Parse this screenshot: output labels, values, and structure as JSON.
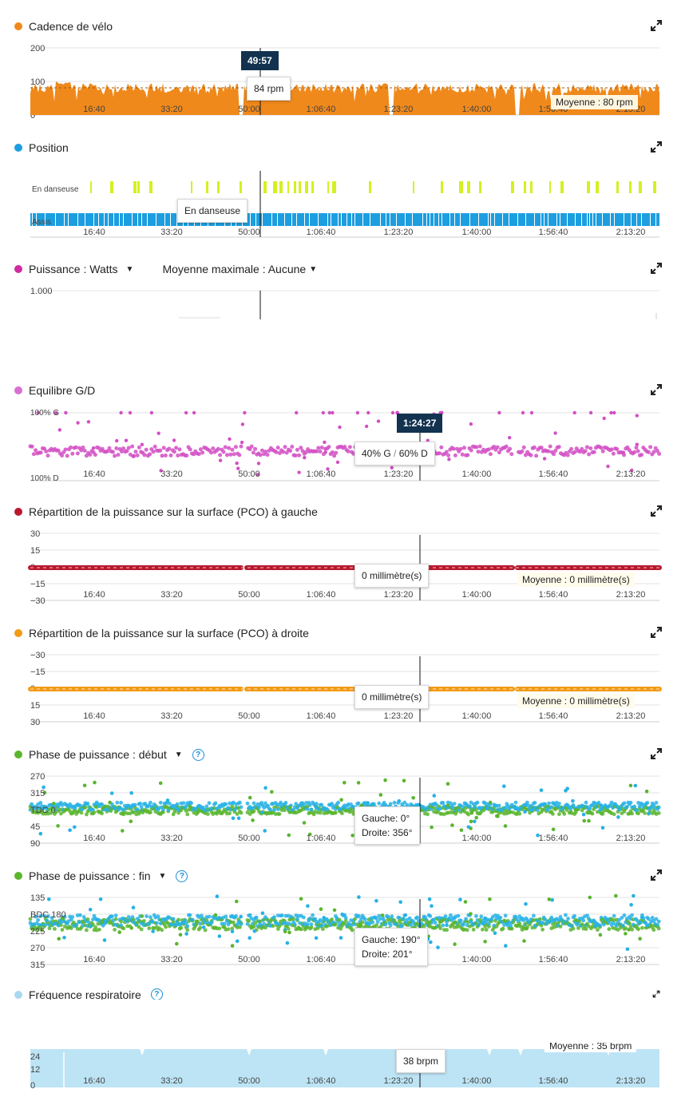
{
  "time_ticks": [
    "16:40",
    "33:20",
    "50:00",
    "1:06:40",
    "1:23:20",
    "1:40:00",
    "1:56:40",
    "2:13:20"
  ],
  "colors": {
    "cadence": "#f0891b",
    "position_stand": "#d5f020",
    "position_seat": "#1c9ee0",
    "power": "#d22aa0",
    "balance": "#d24fc4",
    "pco_left": "#b8182e",
    "pco_right": "#f29b15",
    "phase_left": "#5bb52e",
    "phase_right": "#27b1e6",
    "resp": "#bde4f5",
    "badge": "#12324f"
  },
  "panels": {
    "cadence": {
      "title": "Cadence de vélo",
      "tooltip": "84 rpm",
      "time_badge": "49:57",
      "avg": "Moyenne : 80 rpm"
    },
    "position": {
      "title": "Position",
      "tooltip": "En danseuse"
    },
    "power": {
      "title": "Puissance : Watts",
      "mm": "Moyenne maximale : Aucune"
    },
    "balance": {
      "title": "Equilibre G/D",
      "time_badge": "1:24:27",
      "tooltip_left": "40% G",
      "tooltip_sep": "/",
      "tooltip_right": "60% D"
    },
    "pco_left": {
      "title": "Répartition de la puissance sur la surface (PCO) à gauche",
      "tooltip": "0 millimètre(s)",
      "avg": "Moyenne : 0 millimètre(s)"
    },
    "pco_right": {
      "title": "Répartition de la puissance sur la surface (PCO) à droite",
      "tooltip": "0 millimètre(s)",
      "avg": "Moyenne : 0 millimètre(s)"
    },
    "phase_start": {
      "title": "Phase de puissance : début",
      "help": "?",
      "tooltip_line1": "Gauche: 0°",
      "tooltip_line2": "Droite: 356°"
    },
    "phase_end": {
      "title": "Phase de puissance : fin",
      "help": "?",
      "tooltip_line1": "Gauche: 190°",
      "tooltip_line2": "Droite: 201°"
    },
    "resp": {
      "title": "Fréquence respiratoire",
      "help": "?",
      "tooltip": "38 brpm",
      "avg": "Moyenne : 35 brpm"
    }
  },
  "chart_data": [
    {
      "type": "area",
      "title": "Cadence de vélo",
      "x_unit": "time",
      "x_range": [
        0,
        8500
      ],
      "ylim": [
        0,
        200
      ],
      "y_ticks": [
        "200",
        "100",
        "0"
      ],
      "mean": 80,
      "cursor_x": 2997,
      "series": [
        {
          "name": "Cadence de vélo",
          "typical_value": 84,
          "values_hint": "oscillating 70–100 rpm"
        }
      ]
    },
    {
      "type": "scatter",
      "title": "Position",
      "categories": [
        "En danseuse",
        "Assis"
      ],
      "cursor_x": 2997,
      "series": [
        {
          "name": "En danseuse",
          "value": "intermittent"
        },
        {
          "name": "Assis",
          "value": "continuous"
        }
      ]
    },
    {
      "type": "line",
      "title": "Puissance : Watts",
      "y_ticks": [
        "1.000"
      ],
      "cursor_x": 2997
    },
    {
      "type": "scatter",
      "title": "Equilibre G/D",
      "ylim": [
        "100% D",
        "100% G"
      ],
      "y_ticks": [
        "100% G",
        "100% D"
      ],
      "cursor_x": 5067,
      "series": [
        {
          "name": "Equilibre G/D",
          "typical_value": "40% G / 60% D"
        }
      ]
    },
    {
      "type": "line",
      "title": "Répartition de la puissance sur la surface (PCO) à gauche",
      "ylim": [
        -30,
        30
      ],
      "y_ticks": [
        "30",
        "15",
        "0",
        "−15",
        "−30"
      ],
      "mean": 0,
      "series": [
        {
          "name": "PCO gauche",
          "values_constant": 0
        }
      ]
    },
    {
      "type": "line",
      "title": "Répartition de la puissance sur la surface (PCO) à droite",
      "ylim": [
        -30,
        30
      ],
      "y_ticks": [
        "−30",
        "−15",
        "0",
        "15",
        "30"
      ],
      "mean": 0,
      "series": [
        {
          "name": "PCO droite",
          "values_constant": 0
        }
      ]
    },
    {
      "type": "scatter",
      "title": "Phase de puissance : début",
      "y_ticks": [
        "270",
        "315",
        "TDC 0",
        "45",
        "90"
      ],
      "series": [
        {
          "name": "Gauche",
          "typical_value": 0
        },
        {
          "name": "Droite",
          "typical_value": 356
        }
      ]
    },
    {
      "type": "scatter",
      "title": "Phase de puissance : fin",
      "y_ticks": [
        "135",
        "BDC 180",
        "225",
        "270",
        "315"
      ],
      "series": [
        {
          "name": "Gauche",
          "typical_value": 190
        },
        {
          "name": "Droite",
          "typical_value": 201
        }
      ]
    },
    {
      "type": "area",
      "title": "Fréquence respiratoire",
      "y_ticks": [
        "24",
        "12",
        "0"
      ],
      "mean": 35,
      "series": [
        {
          "name": "Fréquence respiratoire",
          "typical_value": 38
        }
      ]
    }
  ]
}
